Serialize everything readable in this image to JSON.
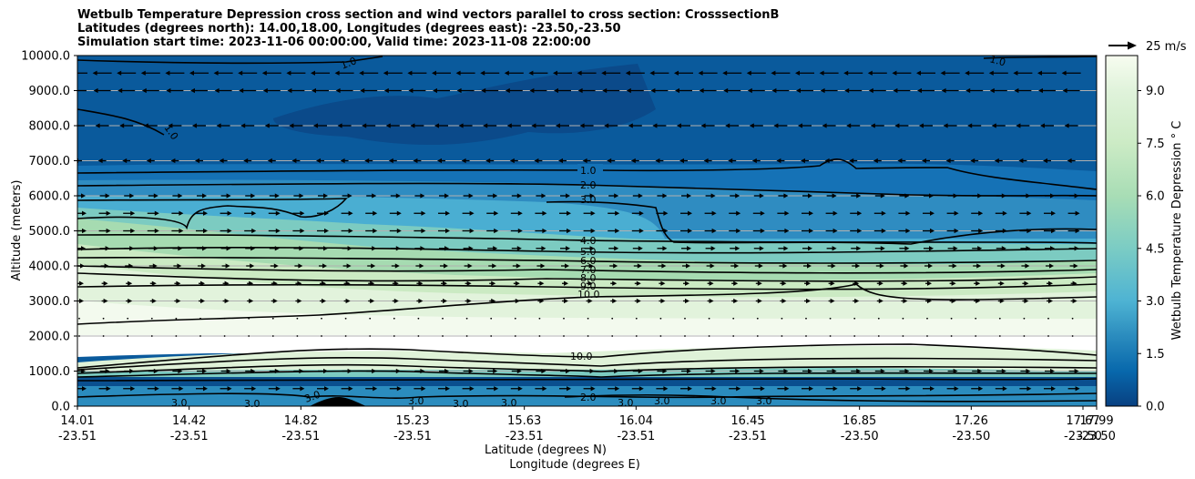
{
  "title_lines": [
    "Wetbulb Temperature Depression cross section and wind vectors parallel to cross section: CrosssectionB",
    "Latitudes (degrees north): 14.00,18.00, Longitudes (degrees east): -23.50,-23.50",
    "Simulation start time: 2023-11-06 00:00:00, Valid time: 2023-11-08 22:00:00"
  ],
  "chart_data": {
    "type": "contourf",
    "title": "Wetbulb Temperature Depression cross section and wind vectors parallel to cross section: CrosssectionB",
    "ylabel": "Altitude (meters)",
    "xlabel": "Latitude (degrees N)",
    "xlabel2": "Longitude (degrees E)",
    "ylim": [
      0,
      10000
    ],
    "yticks": [
      "0.0",
      "1000.0",
      "2000.0",
      "3000.0",
      "4000.0",
      "5000.0",
      "6000.0",
      "7000.0",
      "8000.0",
      "9000.0",
      "10000.0"
    ],
    "grid": "horizontal",
    "xticks": [
      {
        "lat": "14.01",
        "lon": "-23.51"
      },
      {
        "lat": "14.42",
        "lon": "-23.51"
      },
      {
        "lat": "14.82",
        "lon": "-23.51"
      },
      {
        "lat": "15.23",
        "lon": "-23.51"
      },
      {
        "lat": "15.63",
        "lon": "-23.51"
      },
      {
        "lat": "16.04",
        "lon": "-23.51"
      },
      {
        "lat": "16.45",
        "lon": "-23.51"
      },
      {
        "lat": "16.85",
        "lon": "-23.50"
      },
      {
        "lat": "17.26",
        "lon": "-23.50"
      },
      {
        "lat": "17.67",
        "lon": "-23.50"
      },
      {
        "lat": "17.99",
        "lon": "-23.50"
      }
    ],
    "colorbar": {
      "label": "Wetbulb Temperature Depression $^\\circ$C",
      "label_display": "Wetbulb Temperature Depression ° C",
      "range": [
        0,
        10
      ],
      "ticks": [
        "0.0",
        "1.5",
        "3.0",
        "4.5",
        "6.0",
        "7.5",
        "9.0"
      ]
    },
    "quiver_key": "25 m/s",
    "contour_levels": [
      1.0,
      2.0,
      3.0,
      4.0,
      5.0,
      6.0,
      7.0,
      8.0,
      9.0,
      10.0
    ],
    "contour_labels_main": [
      "1.0",
      "2.0",
      "3.0",
      "4.0",
      "5.0",
      "6.0",
      "7.0",
      "8.0",
      "9.0",
      "10.0"
    ],
    "contour_labels_extra": [
      "1.0",
      "1.0",
      "1.0",
      "2.0",
      "3.0",
      "3.0",
      "3.0",
      "3.0",
      "3.0",
      "3.0",
      "3.0",
      "3.0",
      "3.0",
      "3.0",
      "10.0"
    ]
  }
}
